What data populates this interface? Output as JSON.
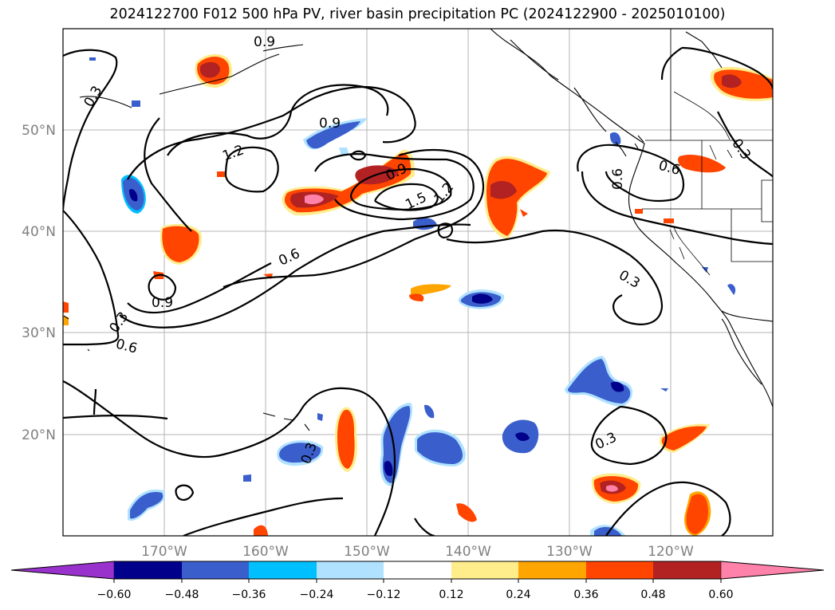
{
  "title": "2024122700 F012 500 hPa PV, river basin precipitation PC (2024122900 - 2025010100)",
  "map": {
    "lat_labels": [
      "50°N",
      "40°N",
      "30°N",
      "20°N"
    ],
    "lon_labels": [
      "170°W",
      "160°W",
      "150°W",
      "140°W",
      "130°W",
      "120°W"
    ],
    "contour_labels": [
      "0.9",
      "0.3",
      "1.2",
      "0.9",
      "0.9",
      "1.5",
      "1.2",
      "0.6",
      "0.9",
      "0.3",
      "0.6",
      "0.6",
      "0.6",
      "0.3",
      "0.3",
      "0.3",
      "0.3"
    ]
  },
  "colorbar": {
    "tick_labels": [
      "−0.60",
      "−0.48",
      "−0.36",
      "−0.24",
      "−0.12",
      "0.12",
      "0.24",
      "0.36",
      "0.48",
      "0.60"
    ],
    "colors": [
      "#9932cc",
      "#00008b",
      "#3a5fcd",
      "#00bfff",
      "#b0e2ff",
      "#ffffff",
      "#ffec8b",
      "#ffa500",
      "#ff4500",
      "#b22222",
      "#ff82ab"
    ]
  }
}
